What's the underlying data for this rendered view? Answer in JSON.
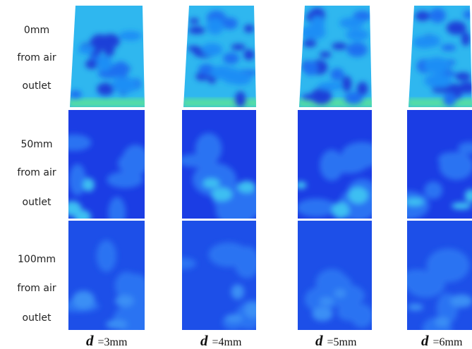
{
  "rows": [
    {
      "lines": [
        "0mm",
        "from air",
        "outlet"
      ]
    },
    {
      "lines": [
        "50mm",
        "from air",
        "outlet"
      ]
    },
    {
      "lines": [
        "100mm",
        "from air",
        "outlet"
      ]
    }
  ],
  "columns": [
    {
      "symbol": "d",
      "label": "=3mm"
    },
    {
      "symbol": "d",
      "label": "=4mm"
    },
    {
      "symbol": "d",
      "label": "=5mm"
    },
    {
      "symbol": "d",
      "label": "=6mm"
    }
  ]
}
